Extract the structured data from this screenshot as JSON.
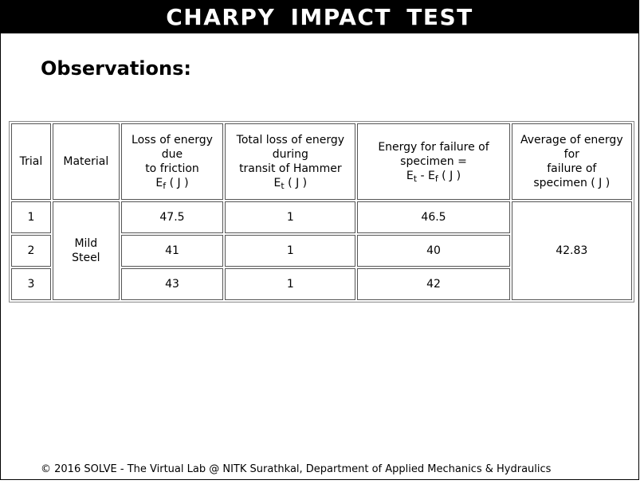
{
  "title": "CHARPY IMPACT TEST",
  "heading": "Observations:",
  "table": {
    "headers": {
      "trial": "Trial",
      "material": "Material",
      "friction": {
        "line1": "Loss of energy",
        "line2": "due",
        "line3": "to friction",
        "sym": "E",
        "sub": "f",
        "unit": " ( J )"
      },
      "total_loss": {
        "line1": "Total loss of energy",
        "line2": "during",
        "line3": "transit of Hammer",
        "sym": "E",
        "sub": "t",
        "unit": " ( J )"
      },
      "failure": {
        "line1": "Energy for failure of",
        "line2": "specimen =",
        "sym1": "E",
        "sub1": "t",
        "minus": " - ",
        "sym2": "E",
        "sub2": "f",
        "unit": " ( J )"
      },
      "average": {
        "line1": "Average of energy",
        "line2": "for",
        "line3": "failure of",
        "line4": "specimen ( J )"
      }
    },
    "material_line1": "Mild",
    "material_line2": "Steel",
    "average_value": "42.83",
    "rows": [
      {
        "trial": "1",
        "friction": "47.5",
        "total": "1",
        "failure": "46.5"
      },
      {
        "trial": "2",
        "friction": "41",
        "total": "1",
        "failure": "40"
      },
      {
        "trial": "3",
        "friction": "43",
        "total": "1",
        "failure": "42"
      }
    ]
  },
  "footer": "© 2016 SOLVE - The Virtual Lab @ NITK Surathkal, Department of Applied Mechanics & Hydraulics"
}
